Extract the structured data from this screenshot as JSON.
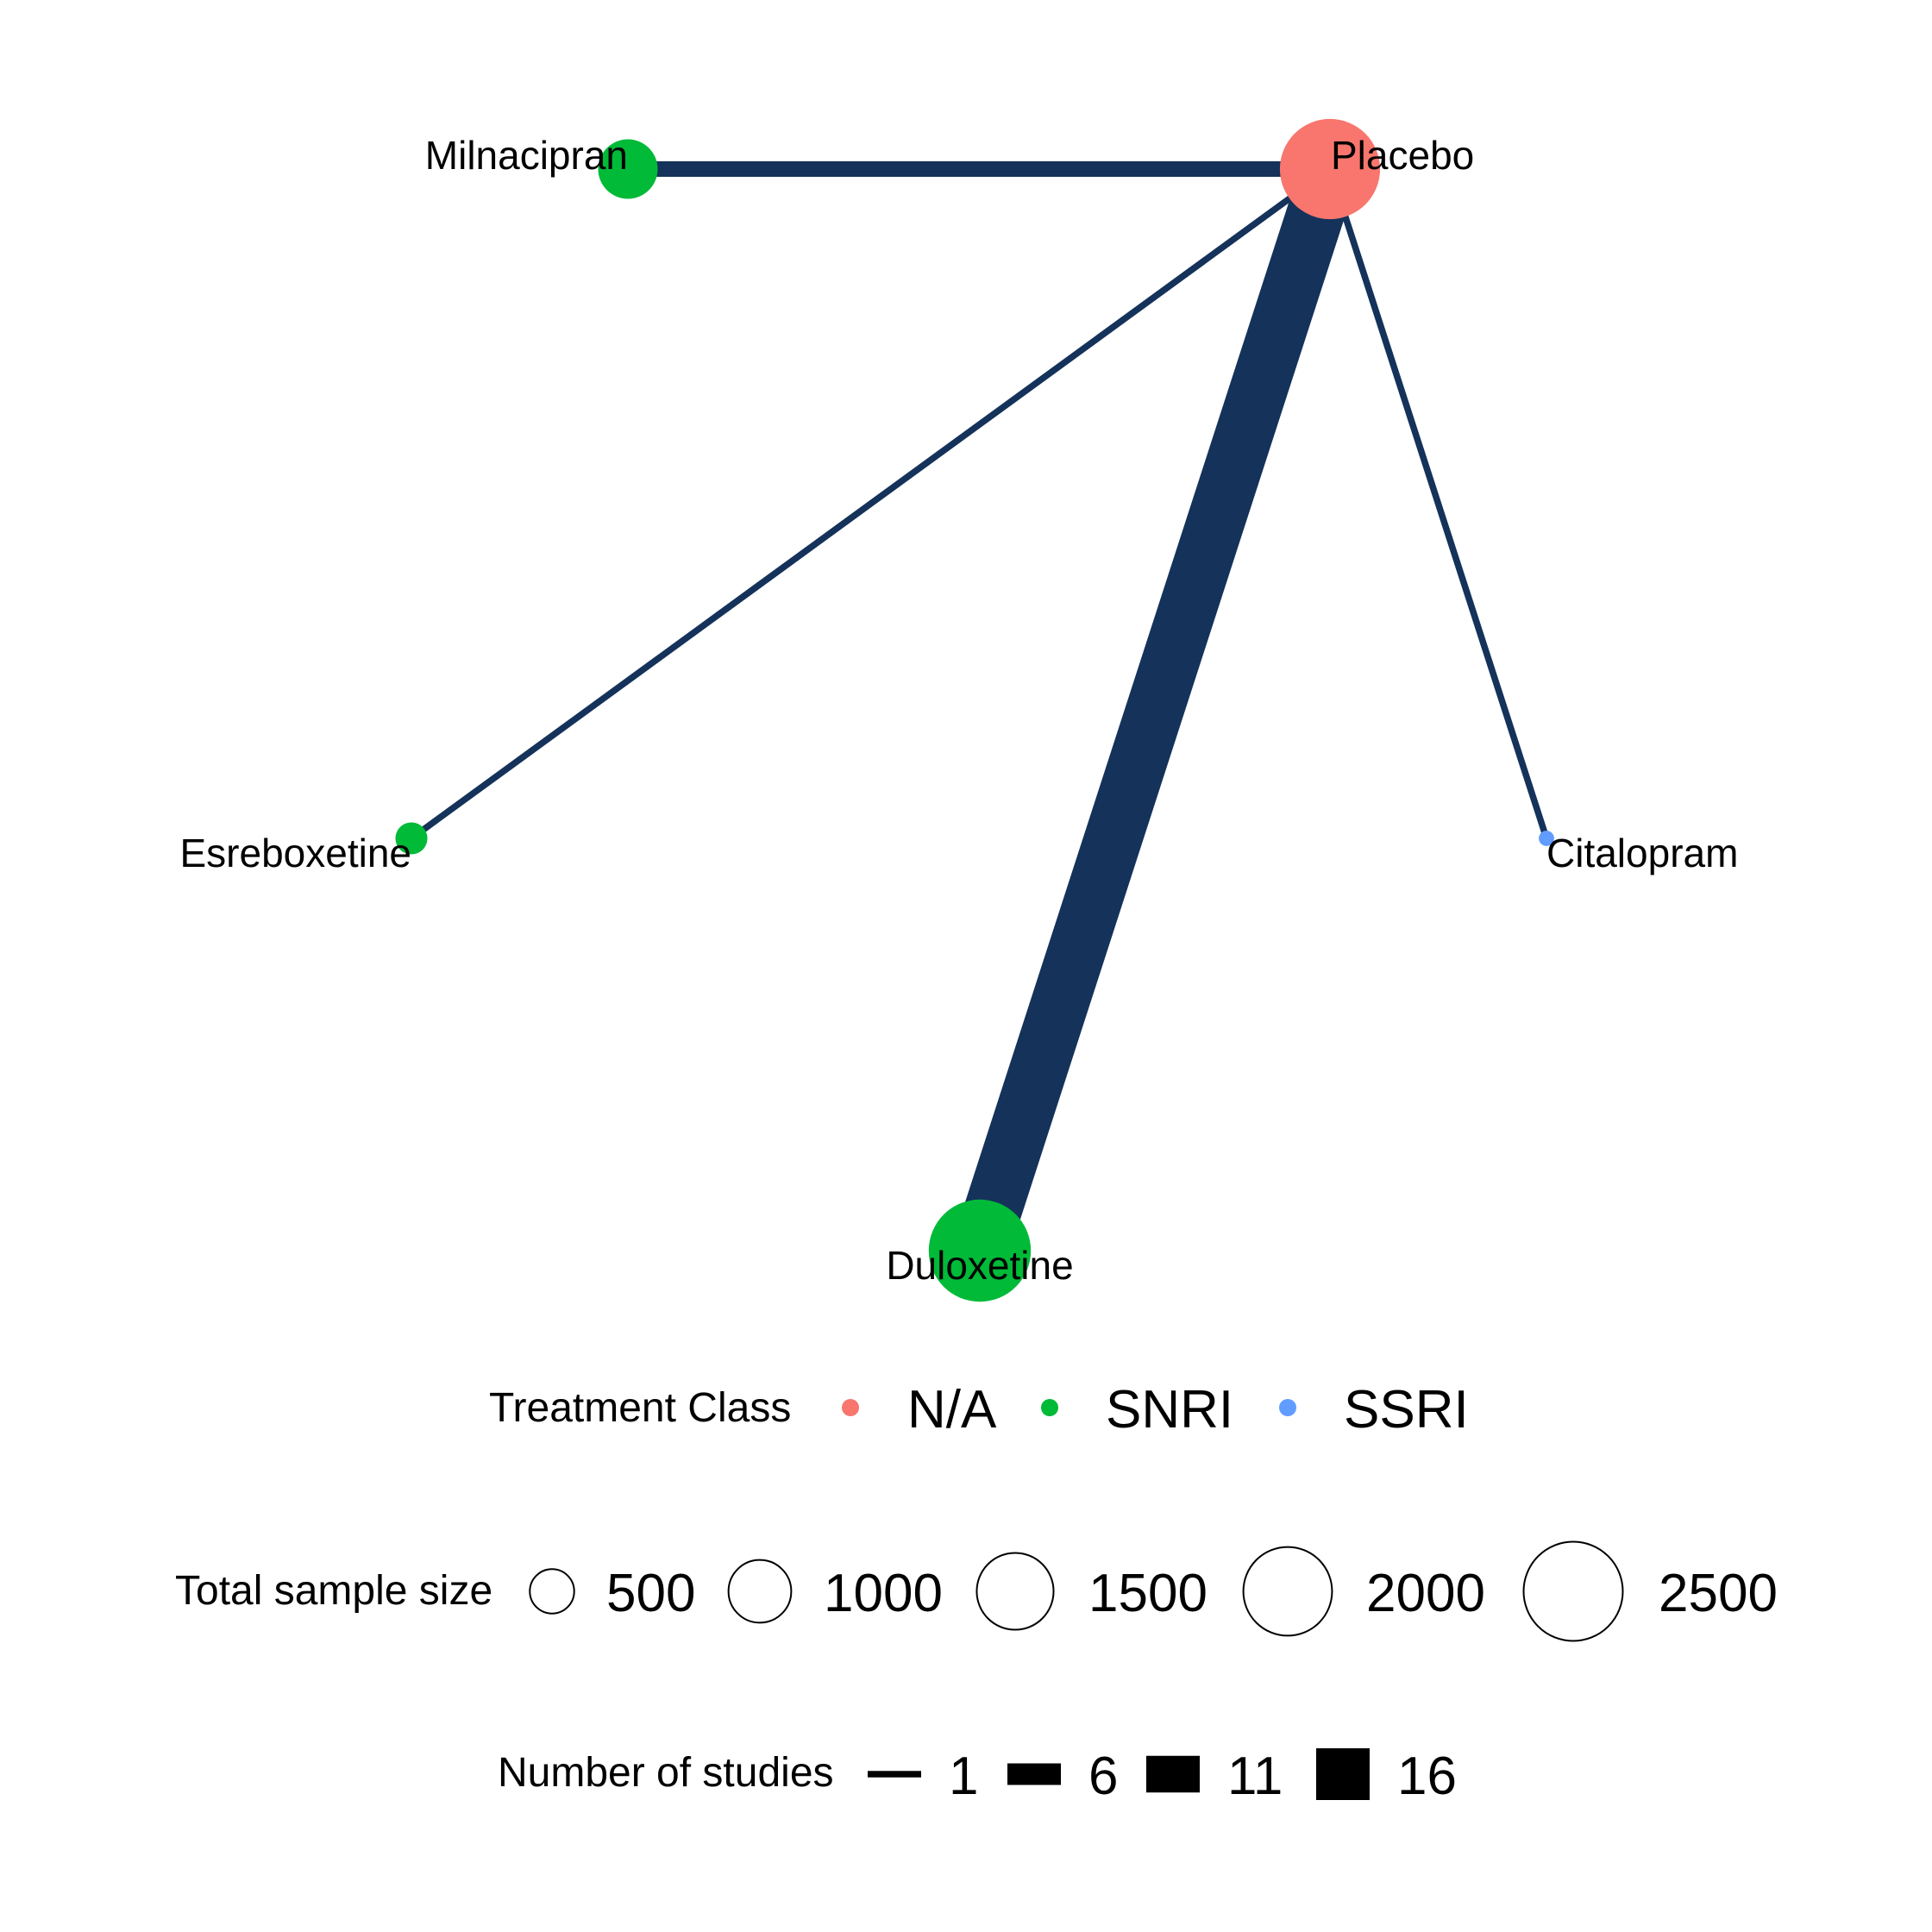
{
  "colors": {
    "edge": "#14325A",
    "N/A": "#F8766D",
    "SNRI": "#00BA38",
    "SSRI": "#619CFF"
  },
  "nodes": [
    {
      "id": "placebo",
      "label": "Placebo",
      "class": "N/A",
      "sample_size": 2550
    },
    {
      "id": "milnacipran",
      "label": "Milnacipran",
      "class": "SNRI",
      "sample_size": 900
    },
    {
      "id": "esreboxetine",
      "label": "Esreboxetine",
      "class": "SNRI",
      "sample_size": 260
    },
    {
      "id": "duloxetine",
      "label": "Duloxetine",
      "class": "SNRI",
      "sample_size": 2650
    },
    {
      "id": "citalopram",
      "label": "Citalopram",
      "class": "SSRI",
      "sample_size": 60
    }
  ],
  "edges": [
    {
      "id": "placebo-milnacipran",
      "from": "placebo",
      "to": "milnacipran",
      "studies": 4
    },
    {
      "id": "placebo-esreboxetine",
      "from": "placebo",
      "to": "esreboxetine",
      "studies": 1
    },
    {
      "id": "placebo-duloxetine",
      "from": "placebo",
      "to": "duloxetine",
      "studies": 18
    },
    {
      "id": "placebo-citalopram",
      "from": "placebo",
      "to": "citalopram",
      "studies": 1
    }
  ],
  "legend": {
    "treatment_class": {
      "title": "Treatment Class",
      "items": [
        {
          "label": "N/A",
          "color": "#F8766D"
        },
        {
          "label": "SNRI",
          "color": "#00BA38"
        },
        {
          "label": "SSRI",
          "color": "#619CFF"
        }
      ]
    },
    "sample_size": {
      "title": "Total sample size",
      "items": [
        {
          "label": "500",
          "value": 500
        },
        {
          "label": "1000",
          "value": 1000
        },
        {
          "label": "1500",
          "value": 1500
        },
        {
          "label": "2000",
          "value": 2000
        },
        {
          "label": "2500",
          "value": 2500
        }
      ]
    },
    "studies": {
      "title": "Number of studies",
      "items": [
        {
          "label": "1",
          "value": 1
        },
        {
          "label": "6",
          "value": 6
        },
        {
          "label": "11",
          "value": 11
        },
        {
          "label": "16",
          "value": 16
        }
      ]
    }
  }
}
